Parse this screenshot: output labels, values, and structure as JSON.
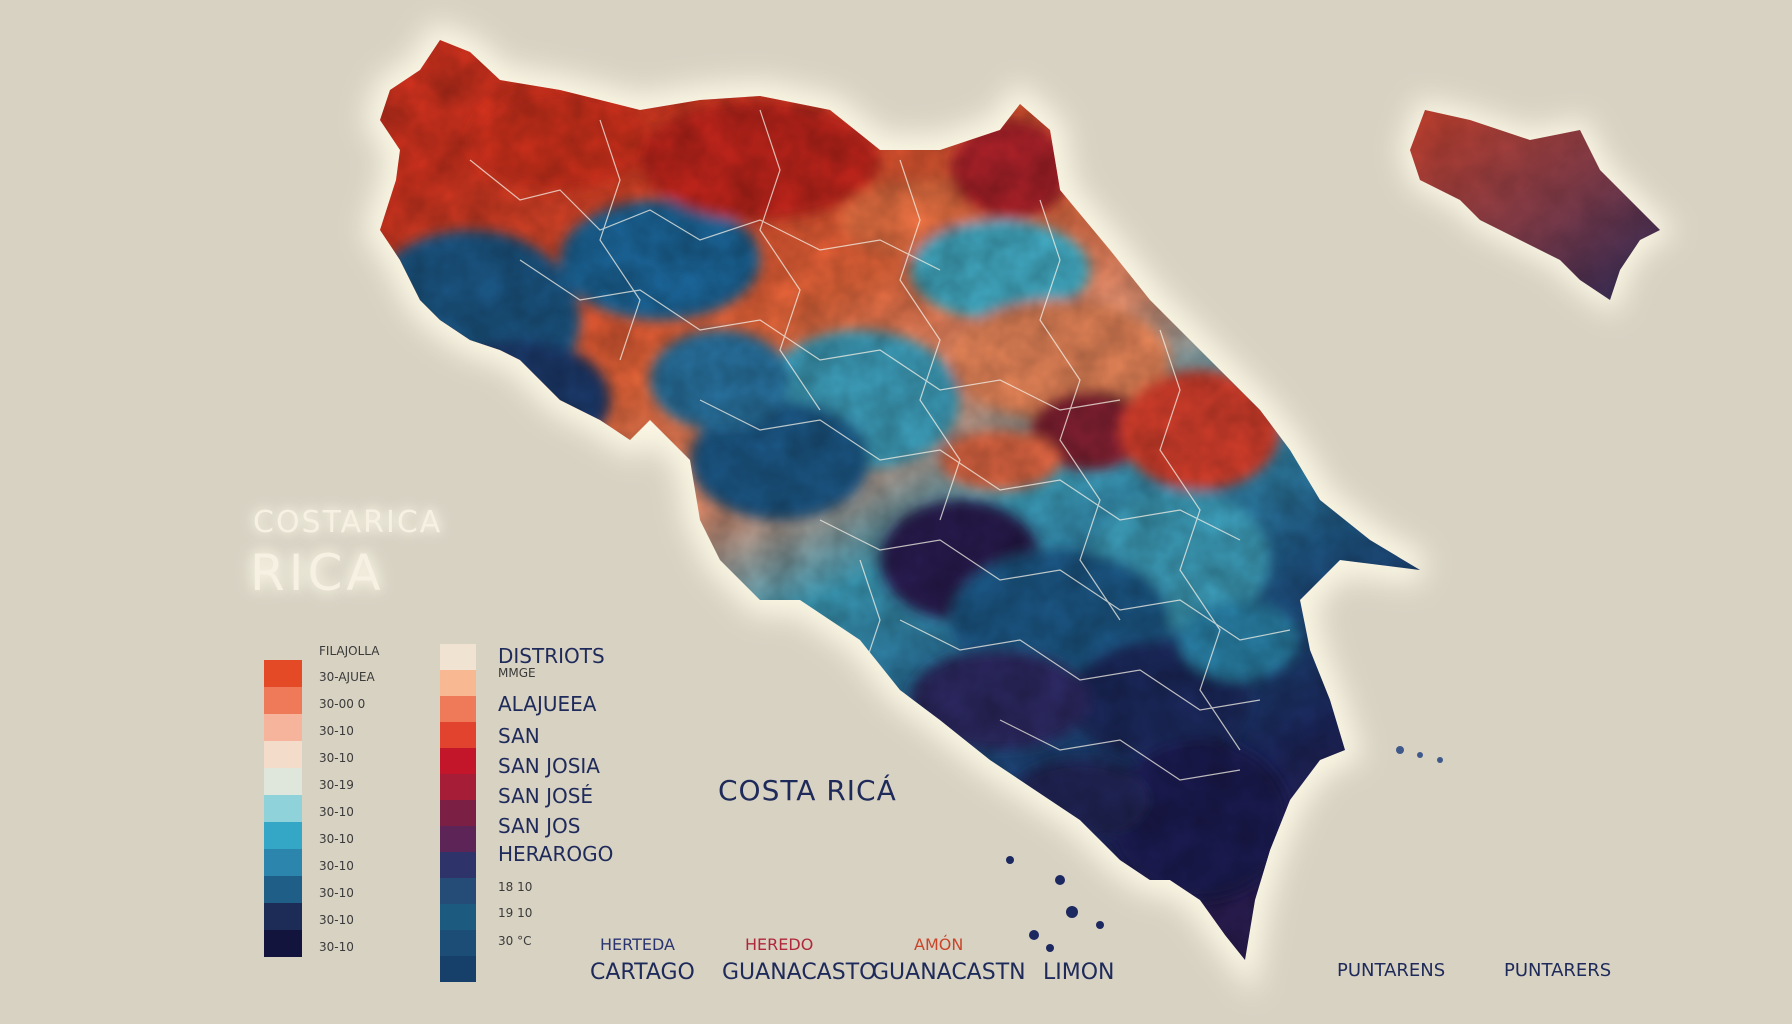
{
  "title": {
    "line1": "COSTARICA",
    "line2": "RICA"
  },
  "center_label": "COSTA RICÁ",
  "legend_left": {
    "header": "FILAJOLLA",
    "items": [
      {
        "label": "30-AJUEA",
        "color": "#e54a27"
      },
      {
        "label": "30-00 0",
        "color": "#ef7a5a"
      },
      {
        "label": "30-10",
        "color": "#f6b49c"
      },
      {
        "label": "30-10",
        "color": "#f3dcc9"
      },
      {
        "label": "30-19",
        "color": "#dfe7dc"
      },
      {
        "label": "30-10",
        "color": "#8fd2da"
      },
      {
        "label": "30-10",
        "color": "#34a6c6"
      },
      {
        "label": "30-10",
        "color": "#2b85ad"
      },
      {
        "label": "30-10",
        "color": "#1f5e86"
      },
      {
        "label": "30-10",
        "color": "#1c2c57"
      },
      {
        "label": "30-10",
        "color": "#12143d"
      }
    ]
  },
  "legend_right": {
    "header": "DISTRIOTS",
    "swatches": [
      "#f1e3d1",
      "#f7b892",
      "#ef7a5a",
      "#e2432e",
      "#c4162a",
      "#a61d38",
      "#7c1f45",
      "#5c2457",
      "#2e3469",
      "#244c76",
      "#1d5a80",
      "#1b4d77",
      "#163f6a"
    ],
    "labels": [
      {
        "text": "MMGE",
        "small": true
      },
      {
        "text": "ALAJUEEA",
        "small": false
      },
      {
        "text": "SAN",
        "small": false
      },
      {
        "text": "SAN JOSIA",
        "small": false
      },
      {
        "text": "SAN JOSÉ",
        "small": false
      },
      {
        "text": "SAN JOS",
        "small": false
      },
      {
        "text": "HERAROGO",
        "small": false
      },
      {
        "text": "18 10",
        "small": true
      },
      {
        "text": "19 10",
        "small": true
      },
      {
        "text": "30 °C",
        "small": true
      }
    ]
  },
  "bottom_labels": {
    "row1": [
      {
        "text": "HERTEDA",
        "color": "#2a3470"
      },
      {
        "text": "HEREDO",
        "color": "#b0283a"
      },
      {
        "text": "AMÓN",
        "color": "#c9452a"
      }
    ],
    "row2": [
      {
        "text": "CARTAGO",
        "color": "#1e2a5a"
      },
      {
        "text": "GUANACASTO",
        "color": "#1e2a5a"
      },
      {
        "text": "GUANACASTN",
        "color": "#1e2a5a"
      },
      {
        "text": "LIMON",
        "color": "#1e2a5a"
      },
      {
        "text": "PUNTARENS",
        "color": "#1e2a5a"
      },
      {
        "text": "PUNTARERS",
        "color": "#1e2a5a"
      }
    ]
  },
  "colors": {
    "background": "#d8d2c3",
    "map_red": "#e24a2a",
    "map_orange": "#f0804e",
    "map_cyan": "#3fa6c4",
    "map_blue": "#1f4f84",
    "map_navy": "#1a1f55",
    "map_purple": "#4a2254"
  }
}
